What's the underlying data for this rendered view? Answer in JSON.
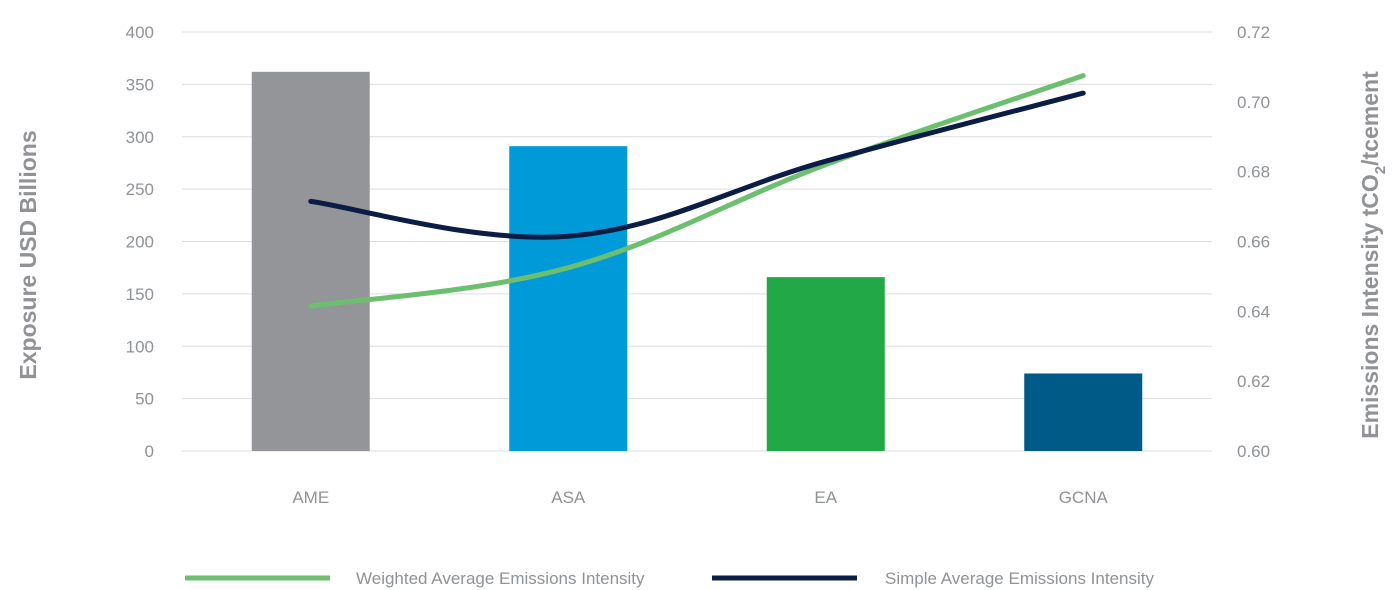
{
  "chart_data": {
    "type": "bar",
    "categories": [
      "AME",
      "ASA",
      "EA",
      "GCNA"
    ],
    "series": [
      {
        "type": "bar",
        "axis": "left",
        "values": [
          362,
          291,
          166,
          74
        ],
        "colors": [
          "#939598",
          "#009ad9",
          "#22a846",
          "#005a87"
        ]
      },
      {
        "type": "line",
        "axis": "right",
        "name": "Weighted Average Emissions Intensity",
        "values": [
          0.6415,
          0.6525,
          0.682,
          0.7075
        ],
        "color": "#6cbf6e"
      },
      {
        "type": "line",
        "axis": "right",
        "name": "Simple Average Emissions Intensity",
        "values": [
          0.6715,
          0.6615,
          0.683,
          0.7025
        ],
        "color": "#0c1d45"
      }
    ],
    "left_axis": {
      "label": "Exposure USD Billions",
      "ylim": [
        0,
        400
      ],
      "ticks": [
        "0",
        "50",
        "100",
        "150",
        "200",
        "250",
        "300",
        "350",
        "400"
      ]
    },
    "right_axis": {
      "label_prefix": "Emissions Intensity tCO",
      "label_subscript": "2",
      "label_suffix": "/tcement",
      "ylim": [
        0.6,
        0.72
      ],
      "ticks": [
        "0.60",
        "0.62",
        "0.64",
        "0.66",
        "0.68",
        "0.70",
        "0.72"
      ]
    },
    "grid": true,
    "legend_position": "bottom"
  }
}
